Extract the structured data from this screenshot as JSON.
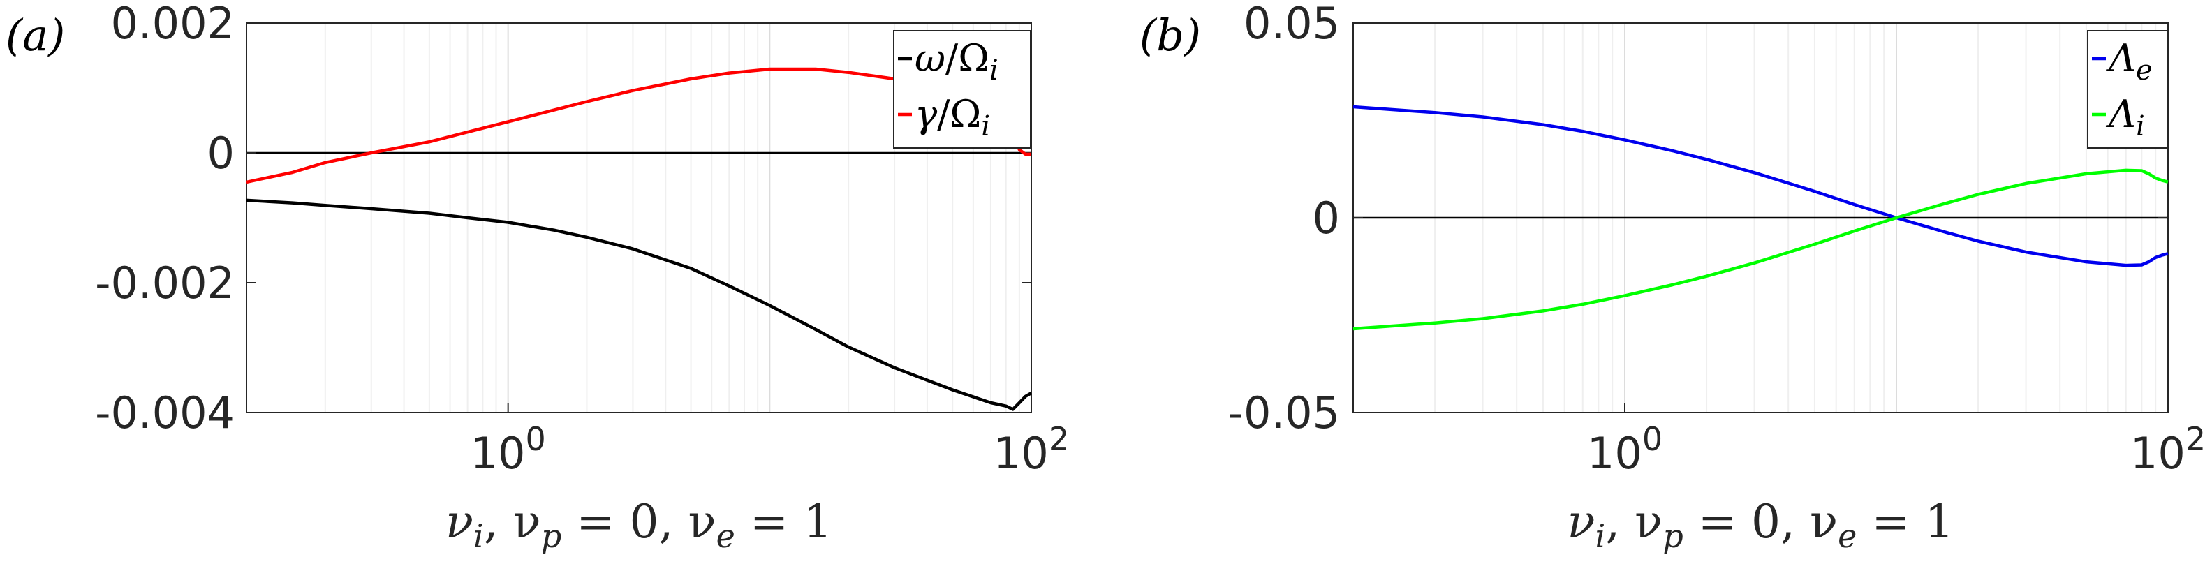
{
  "chart_data": [
    {
      "type": "line",
      "panel_label": "(a)",
      "xlabel": "ν_i, ν_p = 0, ν_e = 1",
      "xscale": "log",
      "xlim": [
        0.1,
        100
      ],
      "xticks": [
        1,
        100
      ],
      "xtick_labels": [
        {
          "base": "10",
          "exp": "0"
        },
        {
          "base": "10",
          "exp": "2"
        }
      ],
      "ylim": [
        -0.004,
        0.002
      ],
      "yticks": [
        0.002,
        0,
        -0.002,
        -0.004
      ],
      "ytick_labels": [
        "0.002",
        "0",
        "-0.002",
        "-0.004"
      ],
      "zero_line": true,
      "grid": "minor vertical",
      "legend_position": "top-right",
      "series": [
        {
          "name": "ω/Ω_i",
          "legend": {
            "greek": "ω",
            "sep": "/",
            "greek2": "Ω",
            "sub": "i"
          },
          "color": "#000000",
          "x": [
            0.1,
            0.15,
            0.2,
            0.3,
            0.5,
            0.7,
            1,
            1.5,
            2,
            3,
            5,
            7,
            10,
            15,
            20,
            30,
            50,
            70,
            80,
            85,
            90,
            95,
            100
          ],
          "y": [
            -0.00073,
            -0.00077,
            -0.00081,
            -0.00086,
            -0.00093,
            -0.001,
            -0.00107,
            -0.00119,
            -0.0013,
            -0.00148,
            -0.00178,
            -0.00205,
            -0.00235,
            -0.00272,
            -0.00299,
            -0.00331,
            -0.00365,
            -0.00385,
            -0.0039,
            -0.00395,
            -0.00385,
            -0.00375,
            -0.0037
          ]
        },
        {
          "name": "γ/Ω_i",
          "legend": {
            "greek": "γ",
            "sep": "/",
            "greek2": "Ω",
            "sub": "i"
          },
          "color": "#ff0000",
          "x": [
            0.1,
            0.15,
            0.2,
            0.3,
            0.5,
            0.7,
            1,
            1.5,
            2,
            3,
            5,
            7,
            10,
            15,
            20,
            30,
            50,
            70,
            80,
            85,
            90,
            95,
            100
          ],
          "y": [
            -0.00045,
            -0.0003,
            -0.00015,
            0.0,
            0.00017,
            0.00032,
            0.00048,
            0.00066,
            0.00079,
            0.00096,
            0.00114,
            0.00123,
            0.00129,
            0.00129,
            0.00124,
            0.00114,
            0.00094,
            0.00078,
            0.0006,
            0.0003,
            5e-05,
            -2e-05,
            -2e-05
          ]
        }
      ]
    },
    {
      "type": "line",
      "panel_label": "(b)",
      "xlabel": "ν_i, ν_p = 0, ν_e = 1",
      "xscale": "log",
      "xlim": [
        0.1,
        100
      ],
      "xticks": [
        1,
        100
      ],
      "xtick_labels": [
        {
          "base": "10",
          "exp": "0"
        },
        {
          "base": "10",
          "exp": "2"
        }
      ],
      "ylim": [
        -0.05,
        0.05
      ],
      "yticks": [
        0.05,
        0,
        -0.05
      ],
      "ytick_labels": [
        "0.05",
        "0",
        "-0.05"
      ],
      "zero_line": true,
      "grid": "minor vertical",
      "legend_position": "top-right",
      "series": [
        {
          "name": "Λ_e",
          "legend": {
            "greek": "Λ",
            "sep": "",
            "greek2": "",
            "sub": "e"
          },
          "color": "#0000ee",
          "x": [
            0.1,
            0.2,
            0.3,
            0.5,
            0.7,
            1,
            1.5,
            2,
            3,
            5,
            7,
            10,
            15,
            20,
            30,
            50,
            70,
            80,
            85,
            90,
            95,
            100
          ],
          "y": [
            0.0285,
            0.027,
            0.0259,
            0.0239,
            0.0222,
            0.02,
            0.0172,
            0.015,
            0.0116,
            0.0068,
            0.0034,
            0.0,
            -0.0036,
            -0.006,
            -0.0088,
            -0.0113,
            -0.0122,
            -0.0121,
            -0.0113,
            -0.0102,
            -0.0096,
            -0.0092
          ]
        },
        {
          "name": "Λ_i",
          "legend": {
            "greek": "Λ",
            "sep": "",
            "greek2": "",
            "sub": "i"
          },
          "color": "#00ff00",
          "x": [
            0.1,
            0.2,
            0.3,
            0.5,
            0.7,
            1,
            1.5,
            2,
            3,
            5,
            7,
            10,
            15,
            20,
            30,
            50,
            70,
            80,
            85,
            90,
            95,
            100
          ],
          "y": [
            -0.0285,
            -0.027,
            -0.0259,
            -0.0239,
            -0.0222,
            -0.02,
            -0.0172,
            -0.015,
            -0.0116,
            -0.0068,
            -0.0034,
            0.0,
            0.0036,
            0.006,
            0.0088,
            0.0113,
            0.0122,
            0.0121,
            0.0113,
            0.0102,
            0.0096,
            0.0092
          ]
        }
      ]
    }
  ]
}
